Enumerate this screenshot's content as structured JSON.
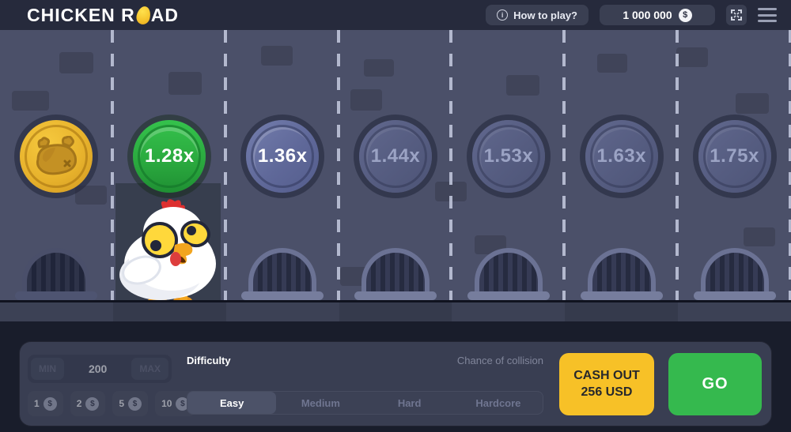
{
  "header": {
    "logo_prefix": "CHICKEN R",
    "logo_suffix": "AD",
    "how_to_play_label": "How to play?",
    "info_symbol": "i",
    "balance": "1 000 000",
    "currency_symbol": "$",
    "icons": {
      "fullscreen": "expand-arrows",
      "menu": "hamburger"
    }
  },
  "game": {
    "lanes": [
      {
        "coin_state": "collected",
        "multiplier": "",
        "coin_icon": "roast-chicken-icon",
        "grate": "dim",
        "chicken": false
      },
      {
        "coin_state": "current",
        "multiplier": "1.28x",
        "coin_icon": "",
        "grate": "hidden",
        "chicken": true
      },
      {
        "coin_state": "next",
        "multiplier": "1.36x",
        "coin_icon": "",
        "grate": "normal",
        "chicken": false
      },
      {
        "coin_state": "upcoming",
        "multiplier": "1.44x",
        "coin_icon": "",
        "grate": "normal",
        "chicken": false
      },
      {
        "coin_state": "upcoming",
        "multiplier": "1.53x",
        "coin_icon": "",
        "grate": "normal",
        "chicken": false
      },
      {
        "coin_state": "upcoming",
        "multiplier": "1.63x",
        "coin_icon": "",
        "grate": "normal",
        "chicken": false
      },
      {
        "coin_state": "upcoming",
        "multiplier": "1.75x",
        "coin_icon": "",
        "grate": "normal",
        "chicken": false
      }
    ]
  },
  "controls": {
    "bet": {
      "min_label": "MIN",
      "max_label": "MAX",
      "value": "200",
      "quick_bets": [
        "1",
        "2",
        "5",
        "10"
      ],
      "quick_bet_coin_symbol": "$"
    },
    "difficulty": {
      "label": "Difficulty",
      "options": [
        "Easy",
        "Medium",
        "Hard",
        "Hardcore"
      ],
      "selected": "Easy"
    },
    "chance_label": "Chance of collision",
    "cashout_line1": "CASH OUT",
    "cashout_line2": "256 USD",
    "go_label": "GO"
  },
  "colors": {
    "topbar_bg": "#262a3c",
    "road_bg": "#4b5069",
    "panel_bg": "#393e52",
    "cashout_yellow": "#f7c127",
    "go_green": "#35b94e",
    "coin_gold": "#e7b22c",
    "coin_green": "#2aa83e",
    "coin_blue": "#5f6899"
  }
}
